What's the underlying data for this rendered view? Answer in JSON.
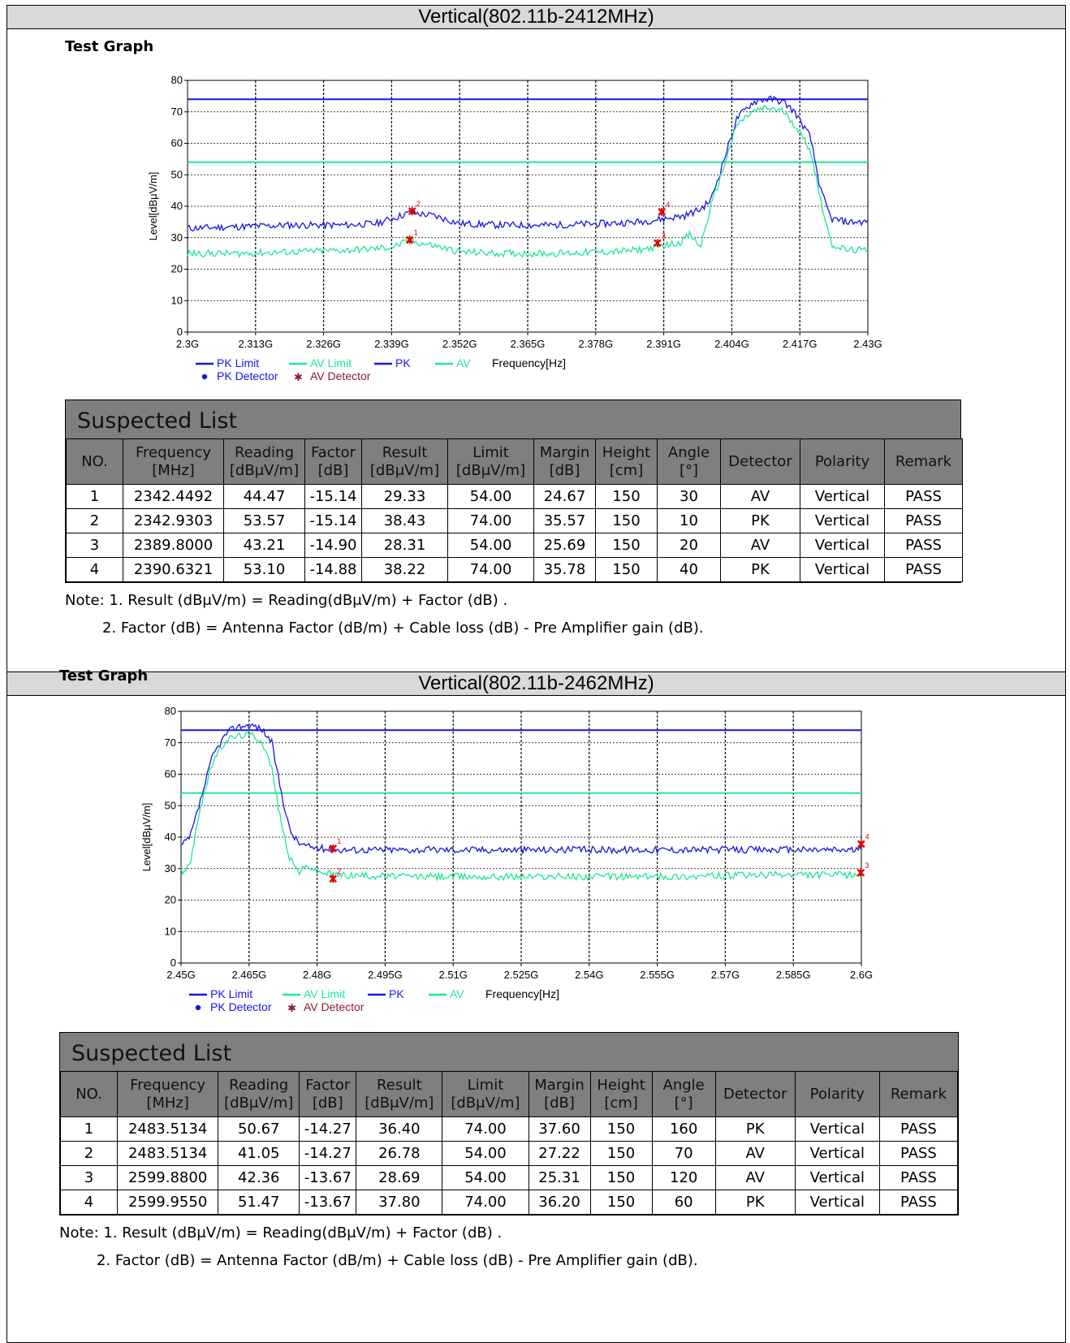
{
  "test_graph_label": "Test Graph",
  "suspected_list_title": "Suspected List",
  "table_headers": [
    "NO.",
    "Frequency\n[MHz]",
    "Reading\n[dBμV/m]",
    "Factor\n[dB]",
    "Result\n[dBμV/m]",
    "Limit\n[dBμV/m]",
    "Margin\n[dB]",
    "Height\n[cm]",
    "Angle\n[°]",
    "Detector",
    "Polarity",
    "Remark"
  ],
  "note_line1": "Note: 1. Result (dBμV/m) = Reading(dBμV/m) + Factor (dB) .",
  "note_line2": "2. Factor (dB) = Antenna Factor (dB/m) + Cable loss (dB) - Pre Amplifier gain (dB).",
  "legend": {
    "pk_limit": "PK Limit",
    "av_limit": "AV Limit",
    "pk": "PK",
    "av": "AV",
    "frequency": "Frequency[Hz]",
    "pk_detector": "PK Detector",
    "av_detector": "AV Detector"
  },
  "colors": {
    "pk": "#1616e0",
    "av": "#20e890",
    "marker": "#e00000",
    "av_detector_legend": "#8b1a3a",
    "header_gray": "#7f7f7f"
  },
  "panels": [
    {
      "title": "Vertical(802.11b-2412MHz)",
      "rows": [
        [
          "1",
          "2342.4492",
          "44.47",
          "-15.14",
          "29.33",
          "54.00",
          "24.67",
          "150",
          "30",
          "AV",
          "Vertical",
          "PASS"
        ],
        [
          "2",
          "2342.9303",
          "53.57",
          "-15.14",
          "38.43",
          "74.00",
          "35.57",
          "150",
          "10",
          "PK",
          "Vertical",
          "PASS"
        ],
        [
          "3",
          "2389.8000",
          "43.21",
          "-14.90",
          "28.31",
          "54.00",
          "25.69",
          "150",
          "20",
          "AV",
          "Vertical",
          "PASS"
        ],
        [
          "4",
          "2390.6321",
          "53.10",
          "-14.88",
          "38.22",
          "74.00",
          "35.78",
          "150",
          "40",
          "PK",
          "Vertical",
          "PASS"
        ]
      ]
    },
    {
      "title": "Vertical(802.11b-2462MHz)",
      "rows": [
        [
          "1",
          "2483.5134",
          "50.67",
          "-14.27",
          "36.40",
          "74.00",
          "37.60",
          "150",
          "160",
          "PK",
          "Vertical",
          "PASS"
        ],
        [
          "2",
          "2483.5134",
          "41.05",
          "-14.27",
          "26.78",
          "54.00",
          "27.22",
          "150",
          "70",
          "AV",
          "Vertical",
          "PASS"
        ],
        [
          "3",
          "2599.8800",
          "42.36",
          "-13.67",
          "28.69",
          "54.00",
          "25.31",
          "150",
          "120",
          "AV",
          "Vertical",
          "PASS"
        ],
        [
          "4",
          "2599.9550",
          "51.47",
          "-13.67",
          "37.80",
          "74.00",
          "36.20",
          "150",
          "60",
          "PK",
          "Vertical",
          "PASS"
        ]
      ]
    }
  ],
  "chart_data": [
    {
      "type": "line",
      "ylabel": "Level[dBμV/m]",
      "xlabel": "Frequency[Hz]",
      "ylim": [
        0,
        80
      ],
      "yticks": [
        0,
        10,
        20,
        30,
        40,
        50,
        60,
        70,
        80
      ],
      "xlim": [
        2.3,
        2.43
      ],
      "xtick_labels": [
        "2.3G",
        "2.313G",
        "2.326G",
        "2.339G",
        "2.352G",
        "2.365G",
        "2.378G",
        "2.391G",
        "2.404G",
        "2.417G",
        "2.43G"
      ],
      "grid": true,
      "limits": [
        {
          "name": "PK Limit",
          "value": 74
        },
        {
          "name": "AV Limit",
          "value": 54
        }
      ],
      "series": [
        {
          "name": "PK",
          "x": [
            2.3,
            2.31,
            2.32,
            2.33,
            2.336,
            2.339,
            2.3425,
            2.347,
            2.352,
            2.36,
            2.37,
            2.38,
            2.386,
            2.391,
            2.395,
            2.398,
            2.4,
            2.402,
            2.405,
            2.408,
            2.41,
            2.412,
            2.414,
            2.416,
            2.419,
            2.421,
            2.423,
            2.426,
            2.43
          ],
          "y": [
            33,
            33.5,
            34,
            34,
            34.5,
            36,
            38,
            37,
            34.5,
            34,
            34,
            34.5,
            35,
            36,
            37,
            39,
            42,
            52,
            68,
            73,
            74,
            74,
            73,
            70,
            62,
            45,
            36,
            35,
            35
          ]
        },
        {
          "name": "AV",
          "x": [
            2.3,
            2.31,
            2.32,
            2.33,
            2.336,
            2.339,
            2.3425,
            2.347,
            2.352,
            2.36,
            2.37,
            2.38,
            2.386,
            2.391,
            2.394,
            2.396,
            2.398,
            2.4,
            2.402,
            2.405,
            2.408,
            2.41,
            2.412,
            2.414,
            2.416,
            2.419,
            2.421,
            2.423,
            2.426,
            2.43
          ],
          "y": [
            25,
            25,
            25.5,
            26,
            26.5,
            27,
            29,
            27.5,
            25.5,
            25,
            25,
            25.5,
            26,
            27.5,
            28.5,
            31,
            27,
            40,
            50,
            66,
            70,
            71,
            71,
            70,
            66,
            58,
            42,
            28,
            26,
            26
          ]
        }
      ],
      "markers": [
        {
          "label": "1",
          "x": 2.3424492,
          "y": 29.33,
          "detector": "AV"
        },
        {
          "label": "2",
          "x": 2.3429303,
          "y": 38.43,
          "detector": "PK"
        },
        {
          "label": "3",
          "x": 2.3898,
          "y": 28.31,
          "detector": "AV"
        },
        {
          "label": "4",
          "x": 2.3906321,
          "y": 38.22,
          "detector": "PK"
        }
      ]
    },
    {
      "type": "line",
      "ylabel": "Level[dBμV/m]",
      "xlabel": "Frequency[Hz]",
      "ylim": [
        0,
        80
      ],
      "yticks": [
        0,
        10,
        20,
        30,
        40,
        50,
        60,
        70,
        80
      ],
      "xlim": [
        2.45,
        2.6
      ],
      "xtick_labels": [
        "2.45G",
        "2.465G",
        "2.48G",
        "2.495G",
        "2.51G",
        "2.525G",
        "2.54G",
        "2.555G",
        "2.57G",
        "2.585G",
        "2.6G"
      ],
      "grid": true,
      "limits": [
        {
          "name": "PK Limit",
          "value": 74
        },
        {
          "name": "AV Limit",
          "value": 54
        }
      ],
      "series": [
        {
          "name": "PK",
          "x": [
            2.45,
            2.452,
            2.454,
            2.457,
            2.46,
            2.462,
            2.464,
            2.466,
            2.468,
            2.47,
            2.472,
            2.474,
            2.476,
            2.478,
            2.48,
            2.485,
            2.5,
            2.52,
            2.54,
            2.56,
            2.58,
            2.6
          ],
          "y": [
            37,
            40,
            50,
            66,
            73,
            75,
            75.5,
            75.5,
            74,
            70,
            55,
            42,
            38,
            37,
            36.5,
            36,
            36,
            36,
            36,
            36,
            36,
            36
          ]
        },
        {
          "name": "AV",
          "x": [
            2.45,
            2.452,
            2.454,
            2.457,
            2.46,
            2.462,
            2.464,
            2.466,
            2.468,
            2.47,
            2.472,
            2.474,
            2.476,
            2.478,
            2.48,
            2.485,
            2.5,
            2.52,
            2.54,
            2.56,
            2.58,
            2.6
          ],
          "y": [
            29,
            31,
            48,
            64,
            71,
            72,
            72.5,
            72.5,
            70,
            62,
            45,
            33,
            29,
            31,
            29,
            28,
            27.5,
            27.5,
            27.5,
            27.5,
            28,
            28
          ]
        }
      ],
      "markers": [
        {
          "label": "1",
          "x": 2.4835134,
          "y": 36.4,
          "detector": "PK"
        },
        {
          "label": "2",
          "x": 2.4835134,
          "y": 26.78,
          "detector": "AV"
        },
        {
          "label": "3",
          "x": 2.59988,
          "y": 28.69,
          "detector": "AV"
        },
        {
          "label": "4",
          "x": 2.599955,
          "y": 37.8,
          "detector": "PK"
        }
      ]
    }
  ]
}
